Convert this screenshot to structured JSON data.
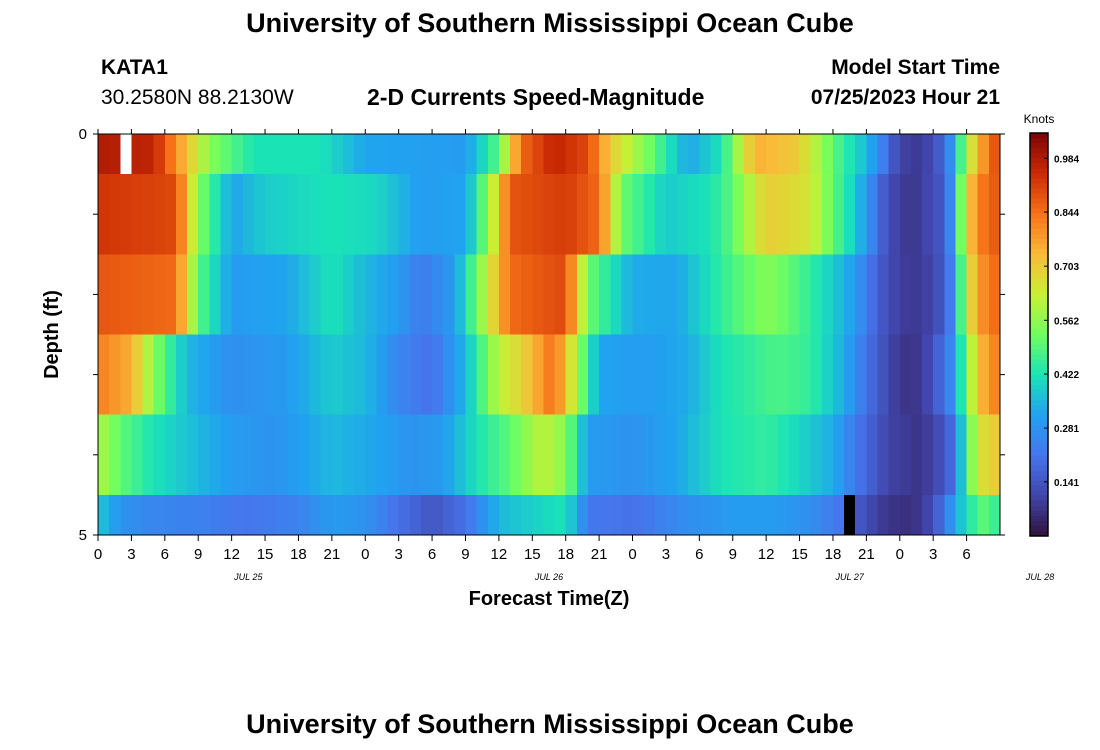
{
  "header": {
    "title": "University of Southern Mississippi Ocean Cube",
    "station": "KATA1",
    "coords": "30.2580N  88.2130W",
    "plot_title": "2-D Currents Speed-Magnitude",
    "model_start_label": "Model Start Time",
    "model_start_value": "07/25/2023 Hour 21"
  },
  "footer": {
    "title": "University of Southern Mississippi Ocean Cube"
  },
  "chart_data": {
    "type": "heatmap",
    "title": "2-D Currents Speed-Magnitude",
    "xlabel": "Forecast Time(Z)",
    "ylabel": "Depth (ft)",
    "x_tick_labels": [
      "0",
      "3",
      "6",
      "9",
      "12",
      "15",
      "18",
      "21",
      "0",
      "3",
      "6",
      "9",
      "12",
      "15",
      "18",
      "21",
      "0",
      "3",
      "6",
      "9",
      "12",
      "15",
      "18",
      "21",
      "0",
      "3",
      "6"
    ],
    "date_labels": [
      {
        "label": "JUL 25",
        "tick_index": 4.5
      },
      {
        "label": "JUL 26",
        "tick_index": 13.5
      },
      {
        "label": "JUL 27",
        "tick_index": 22.5
      },
      {
        "label": "JUL 28",
        "tick_index": 28.2
      }
    ],
    "y_ticks": [
      {
        "label": "0",
        "value": 0
      },
      {
        "label": "5",
        "value": 5
      }
    ],
    "ylim": [
      0,
      5
    ],
    "xlim_hours": [
      0,
      81
    ],
    "colorbar": {
      "unit": "Knots",
      "min": 0.0,
      "max": 1.05,
      "tick_labels": [
        "0.984",
        "0.844",
        "0.703",
        "0.562",
        "0.422",
        "0.281",
        "0.141"
      ],
      "tick_values": [
        0.984,
        0.844,
        0.703,
        0.562,
        0.422,
        0.281,
        0.141
      ]
    },
    "depth_layers": 5,
    "hour_step": 1,
    "layer_keyframes": [
      [
        [
          0,
          0.98
        ],
        [
          5,
          0.96
        ],
        [
          7,
          0.8
        ],
        [
          10,
          0.55
        ],
        [
          14,
          0.42
        ],
        [
          20,
          0.42
        ],
        [
          24,
          0.32
        ],
        [
          33,
          0.3
        ],
        [
          36,
          0.5
        ],
        [
          38,
          0.85
        ],
        [
          41,
          0.96
        ],
        [
          44,
          0.9
        ],
        [
          46,
          0.7
        ],
        [
          49,
          0.55
        ],
        [
          53,
          0.32
        ],
        [
          56,
          0.42
        ],
        [
          59,
          0.75
        ],
        [
          63,
          0.7
        ],
        [
          66,
          0.5
        ],
        [
          69,
          0.35
        ],
        [
          70,
          0.28
        ],
        [
          71,
          0.18
        ],
        [
          72,
          0.1
        ],
        [
          74,
          0.08
        ],
        [
          76,
          0.18
        ],
        [
          77,
          0.35
        ],
        [
          78,
          0.6
        ],
        [
          80,
          0.85
        ],
        [
          81,
          0.9
        ]
      ],
      [
        [
          0,
          0.93
        ],
        [
          7,
          0.9
        ],
        [
          9,
          0.55
        ],
        [
          12,
          0.32
        ],
        [
          15,
          0.38
        ],
        [
          21,
          0.42
        ],
        [
          25,
          0.4
        ],
        [
          29,
          0.3
        ],
        [
          33,
          0.32
        ],
        [
          35,
          0.55
        ],
        [
          37,
          0.88
        ],
        [
          42,
          0.92
        ],
        [
          45,
          0.85
        ],
        [
          47,
          0.52
        ],
        [
          51,
          0.38
        ],
        [
          55,
          0.42
        ],
        [
          57,
          0.5
        ],
        [
          60,
          0.7
        ],
        [
          64,
          0.65
        ],
        [
          66,
          0.5
        ],
        [
          68,
          0.38
        ],
        [
          70,
          0.2
        ],
        [
          71,
          0.12
        ],
        [
          73,
          0.07
        ],
        [
          76,
          0.15
        ],
        [
          77,
          0.35
        ],
        [
          78,
          0.7
        ],
        [
          80,
          0.88
        ],
        [
          81,
          0.86
        ]
      ],
      [
        [
          0,
          0.88
        ],
        [
          7,
          0.85
        ],
        [
          9,
          0.5
        ],
        [
          12,
          0.3
        ],
        [
          17,
          0.32
        ],
        [
          21,
          0.42
        ],
        [
          24,
          0.35
        ],
        [
          27,
          0.3
        ],
        [
          29,
          0.22
        ],
        [
          32,
          0.3
        ],
        [
          34,
          0.52
        ],
        [
          37,
          0.85
        ],
        [
          42,
          0.9
        ],
        [
          44,
          0.52
        ],
        [
          48,
          0.33
        ],
        [
          52,
          0.32
        ],
        [
          56,
          0.45
        ],
        [
          60,
          0.55
        ],
        [
          63,
          0.48
        ],
        [
          66,
          0.38
        ],
        [
          68,
          0.3
        ],
        [
          70,
          0.16
        ],
        [
          72,
          0.09
        ],
        [
          74,
          0.08
        ],
        [
          76,
          0.15
        ],
        [
          77,
          0.3
        ],
        [
          78,
          0.65
        ],
        [
          80,
          0.85
        ],
        [
          81,
          0.84
        ]
      ],
      [
        [
          0,
          0.82
        ],
        [
          3,
          0.75
        ],
        [
          5,
          0.55
        ],
        [
          8,
          0.35
        ],
        [
          12,
          0.27
        ],
        [
          17,
          0.3
        ],
        [
          21,
          0.38
        ],
        [
          24,
          0.35
        ],
        [
          27,
          0.25
        ],
        [
          30,
          0.2
        ],
        [
          33,
          0.35
        ],
        [
          36,
          0.62
        ],
        [
          38,
          0.68
        ],
        [
          41,
          0.85
        ],
        [
          43,
          0.58
        ],
        [
          45,
          0.32
        ],
        [
          49,
          0.3
        ],
        [
          53,
          0.33
        ],
        [
          56,
          0.42
        ],
        [
          61,
          0.48
        ],
        [
          64,
          0.45
        ],
        [
          67,
          0.33
        ],
        [
          69,
          0.2
        ],
        [
          72,
          0.07
        ],
        [
          74,
          0.08
        ],
        [
          76,
          0.2
        ],
        [
          77,
          0.3
        ],
        [
          78,
          0.55
        ],
        [
          80,
          0.82
        ],
        [
          81,
          0.8
        ]
      ],
      [
        [
          0,
          0.6
        ],
        [
          2,
          0.5
        ],
        [
          5,
          0.42
        ],
        [
          9,
          0.35
        ],
        [
          12,
          0.3
        ],
        [
          16,
          0.28
        ],
        [
          21,
          0.35
        ],
        [
          25,
          0.32
        ],
        [
          28,
          0.28
        ],
        [
          31,
          0.3
        ],
        [
          34,
          0.42
        ],
        [
          37,
          0.5
        ],
        [
          40,
          0.62
        ],
        [
          42,
          0.55
        ],
        [
          44,
          0.3
        ],
        [
          48,
          0.28
        ],
        [
          52,
          0.32
        ],
        [
          56,
          0.42
        ],
        [
          60,
          0.45
        ],
        [
          63,
          0.4
        ],
        [
          66,
          0.33
        ],
        [
          68,
          0.22
        ],
        [
          71,
          0.1
        ],
        [
          74,
          0.07
        ],
        [
          76,
          0.14
        ],
        [
          77,
          0.22
        ],
        [
          78,
          0.5
        ],
        [
          80,
          0.72
        ],
        [
          81,
          0.68
        ]
      ],
      [
        [
          0,
          0.38
        ],
        [
          2,
          0.28
        ],
        [
          5,
          0.25
        ],
        [
          9,
          0.24
        ],
        [
          13,
          0.21
        ],
        [
          18,
          0.24
        ],
        [
          21,
          0.3
        ],
        [
          24,
          0.28
        ],
        [
          27,
          0.2
        ],
        [
          30,
          0.14
        ],
        [
          33,
          0.2
        ],
        [
          36,
          0.35
        ],
        [
          40,
          0.4
        ],
        [
          42,
          0.42
        ],
        [
          44,
          0.22
        ],
        [
          48,
          0.2
        ],
        [
          52,
          0.26
        ],
        [
          57,
          0.3
        ],
        [
          61,
          0.3
        ],
        [
          64,
          0.27
        ],
        [
          67,
          0.2
        ],
        [
          69,
          0.12
        ],
        [
          71,
          0.07
        ],
        [
          73,
          0.06
        ],
        [
          75,
          0.12
        ],
        [
          77,
          0.32
        ],
        [
          78,
          0.42
        ],
        [
          80,
          0.52
        ],
        [
          81,
          0.4
        ]
      ]
    ],
    "missing_cells": [
      {
        "hour": 2,
        "layer": 0,
        "fill": "#ffffff"
      },
      {
        "hour": 67,
        "layer": 5,
        "fill": "#000000"
      }
    ]
  }
}
